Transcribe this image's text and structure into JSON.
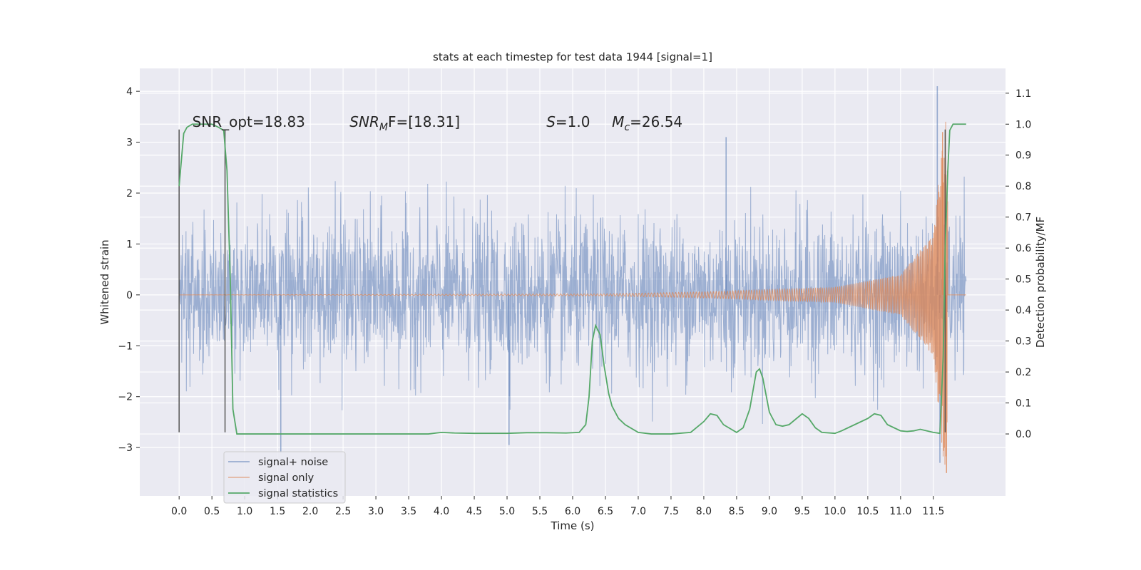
{
  "chart_data": {
    "type": "line",
    "title": "stats at each timestep for test data 1944 [signal=1]",
    "xlabel": "Time (s)",
    "ylabel": "Whitened strain",
    "ylabel_right": "Detection probability/MF",
    "xlim": [
      -0.6,
      12.6
    ],
    "ylim": [
      -3.95,
      4.45
    ],
    "ylim_right": [
      -0.2,
      1.18
    ],
    "x_ticks": [
      "0.0",
      "0.5",
      "1.0",
      "1.5",
      "2.0",
      "2.5",
      "3.0",
      "3.5",
      "4.0",
      "4.5",
      "5.0",
      "5.5",
      "6.0",
      "6.5",
      "7.0",
      "7.5",
      "8.0",
      "8.5",
      "9.0",
      "9.5",
      "10.0",
      "10.5",
      "11.0",
      "11.5"
    ],
    "y_ticks": [
      "4",
      "3",
      "2",
      "1",
      "0",
      "−1",
      "−2",
      "−3"
    ],
    "y_ticks_right": [
      "1.1",
      "1.0",
      "0.9",
      "0.8",
      "0.7",
      "0.6",
      "0.5",
      "0.4",
      "0.3",
      "0.2",
      "0.1",
      "0.0"
    ],
    "grid": true,
    "legend_position": "lower-left",
    "annotations": [
      {
        "text": "SNR_opt=18.83",
        "x": 0.2,
        "y": 3.3
      },
      {
        "italic": "SNR",
        "sub": "M",
        "rest": "F=[18.31]",
        "x": 2.6,
        "y": 3.3
      },
      {
        "italic": "S",
        "rest": "=1.0",
        "x": 5.6,
        "y": 3.3
      },
      {
        "italic": "M",
        "sub": "c",
        "rest": "=26.54",
        "x": 6.6,
        "y": 3.3
      }
    ],
    "vertical_markers": [
      {
        "x": 0.0,
        "ymin": -2.7,
        "ymax": 3.25
      },
      {
        "x": 0.7,
        "ymin": -2.7,
        "ymax": 3.25
      },
      {
        "x": 11.68,
        "ymin": -2.7,
        "ymax": 3.25
      }
    ],
    "series": [
      {
        "name": "signal+ noise",
        "color": "#4c72b0",
        "axis": "left",
        "x_range": [
          0.0,
          12.0
        ],
        "band_mean": 0.0,
        "band_sigma": 0.75,
        "envelope_approx": {
          "upper": 2.4,
          "lower": -2.5
        },
        "extremes": [
          {
            "x": 1.55,
            "y": -3.1
          },
          {
            "x": 5.03,
            "y": -2.95
          },
          {
            "x": 8.34,
            "y": 3.1
          },
          {
            "x": 11.56,
            "y": 4.1
          },
          {
            "x": 11.6,
            "y": -3.3
          }
        ]
      },
      {
        "name": "signal only",
        "color": "#dd8452",
        "axis": "left",
        "x_range": [
          0.0,
          12.0
        ],
        "description_points": [
          {
            "x": 0.0,
            "amp": 0.0
          },
          {
            "x": 6.5,
            "amp": 0.02
          },
          {
            "x": 8.0,
            "amp": 0.06
          },
          {
            "x": 10.0,
            "amp": 0.15
          },
          {
            "x": 11.0,
            "amp": 0.4
          },
          {
            "x": 11.5,
            "amp": 1.2
          },
          {
            "x": 11.65,
            "amp": 3.2
          },
          {
            "x": 11.7,
            "amp": -3.5
          },
          {
            "x": 11.75,
            "amp": 0.0
          }
        ]
      },
      {
        "name": "signal statistics",
        "color": "#55a868",
        "axis": "right",
        "x": [
          0.0,
          0.07,
          0.12,
          0.2,
          0.3,
          0.4,
          0.5,
          0.6,
          0.68,
          0.73,
          0.78,
          0.82,
          0.88,
          0.95,
          1.0,
          2.0,
          3.0,
          3.5,
          3.8,
          4.0,
          4.2,
          4.5,
          5.0,
          5.3,
          5.6,
          5.9,
          6.1,
          6.2,
          6.25,
          6.3,
          6.35,
          6.42,
          6.48,
          6.55,
          6.6,
          6.7,
          6.8,
          7.0,
          7.2,
          7.5,
          7.8,
          8.0,
          8.1,
          8.2,
          8.3,
          8.5,
          8.6,
          8.7,
          8.8,
          8.85,
          8.9,
          9.0,
          9.1,
          9.2,
          9.3,
          9.5,
          9.6,
          9.7,
          9.8,
          10.0,
          10.1,
          10.3,
          10.5,
          10.6,
          10.7,
          10.8,
          11.0,
          11.1,
          11.2,
          11.3,
          11.5,
          11.6,
          11.65,
          11.68,
          11.72,
          11.75,
          11.8,
          11.85,
          11.9,
          12.0
        ],
        "y": [
          0.8,
          0.97,
          0.99,
          1.0,
          1.0,
          1.0,
          1.0,
          0.99,
          0.98,
          0.85,
          0.5,
          0.08,
          0.0,
          0.0,
          0.0,
          0.0,
          0.0,
          0.0,
          0.0,
          0.005,
          0.003,
          0.002,
          0.002,
          0.004,
          0.004,
          0.003,
          0.005,
          0.03,
          0.12,
          0.3,
          0.35,
          0.32,
          0.22,
          0.13,
          0.09,
          0.05,
          0.03,
          0.005,
          0.0,
          0.0,
          0.005,
          0.04,
          0.065,
          0.06,
          0.03,
          0.005,
          0.02,
          0.08,
          0.2,
          0.21,
          0.18,
          0.07,
          0.03,
          0.025,
          0.03,
          0.065,
          0.05,
          0.02,
          0.005,
          0.002,
          0.01,
          0.03,
          0.05,
          0.065,
          0.06,
          0.03,
          0.01,
          0.008,
          0.01,
          0.015,
          0.005,
          0.002,
          0.25,
          0.6,
          0.85,
          0.98,
          1.0,
          1.0,
          1.0,
          1.0
        ]
      }
    ]
  }
}
